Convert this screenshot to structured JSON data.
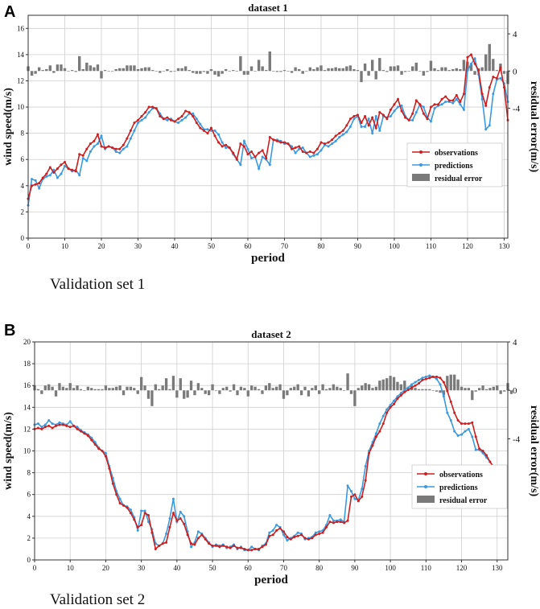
{
  "panels": [
    {
      "letter": "A",
      "caption": "Validation set 1"
    },
    {
      "letter": "B",
      "caption": "Validation set 2"
    }
  ],
  "chart_data": [
    {
      "type": "line",
      "title": "dataset 1",
      "xlabel": "period",
      "ylabel": "wind speed(m/s)",
      "ylabel_right": "residual error(m/s)",
      "xlim": [
        0,
        131
      ],
      "ylim": [
        0,
        17
      ],
      "y2lim": [
        -18,
        6
      ],
      "xticks": [
        0,
        10,
        20,
        30,
        40,
        50,
        60,
        70,
        80,
        90,
        100,
        110,
        120,
        130
      ],
      "yticks": [
        0,
        2,
        4,
        6,
        8,
        10,
        12,
        14,
        16
      ],
      "y2ticks": [
        4,
        0,
        -4
      ],
      "grid": true,
      "legend_position": "bottom-right",
      "legend": {
        "observations": "observations",
        "predictions": "predictions",
        "residual": "residual error"
      },
      "colors": {
        "observations": "#cc1f1f",
        "predictions": "#3a9ae0",
        "residual": "#7a7a7a"
      },
      "observations": [
        3.0,
        4.0,
        4.1,
        4.2,
        4.6,
        4.9,
        5.4,
        5.0,
        5.3,
        5.6,
        5.8,
        5.3,
        5.2,
        5.1,
        6.4,
        6.3,
        6.8,
        7.2,
        7.4,
        7.9,
        7.0,
        6.9,
        7.0,
        6.9,
        6.8,
        6.8,
        7.1,
        7.6,
        8.2,
        8.8,
        9.0,
        9.3,
        9.6,
        10.0,
        10.0,
        9.9,
        9.3,
        9.1,
        9.2,
        9.0,
        8.9,
        9.1,
        9.3,
        9.7,
        9.6,
        9.3,
        8.8,
        8.4,
        8.2,
        8.0,
        8.4,
        7.8,
        7.3,
        7.0,
        7.1,
        6.9,
        6.5,
        6.0,
        7.2,
        7.0,
        6.4,
        6.6,
        6.2,
        6.5,
        6.7,
        6.1,
        7.7,
        7.5,
        7.4,
        7.3,
        7.3,
        7.2,
        6.8,
        6.9,
        7.0,
        6.6,
        6.5,
        6.6,
        6.5,
        6.8,
        7.3,
        7.2,
        7.3,
        7.5,
        7.8,
        8.0,
        8.2,
        8.6,
        9.1,
        9.3,
        9.4,
        8.8,
        9.3,
        8.6,
        9.2,
        8.4,
        9.6,
        9.4,
        9.1,
        9.8,
        10.2,
        10.6,
        9.7,
        9.2,
        9.0,
        9.5,
        10.5,
        10.2,
        9.5,
        9.1,
        10.0,
        10.2,
        10.2,
        10.6,
        10.8,
        10.5,
        10.5,
        10.9,
        10.4,
        11.0,
        13.8,
        14.0,
        13.3,
        12.8,
        11.0,
        10.1,
        11.5,
        12.3,
        12.2,
        13.0,
        11.5,
        9.0
      ],
      "predictions": [
        2.5,
        4.5,
        4.4,
        3.8,
        4.5,
        4.7,
        4.8,
        5.2,
        4.6,
        4.9,
        5.5,
        5.3,
        5.1,
        5.2,
        4.8,
        6.1,
        5.9,
        6.6,
        7.0,
        7.2,
        7.8,
        6.8,
        7.0,
        6.9,
        6.6,
        6.5,
        6.8,
        7.0,
        7.6,
        8.2,
        8.8,
        9.0,
        9.2,
        9.6,
        9.9,
        9.9,
        9.5,
        9.1,
        9.0,
        9.1,
        8.9,
        8.8,
        9.0,
        9.2,
        9.5,
        9.5,
        9.1,
        8.7,
        8.3,
        8.3,
        8.2,
        8.2,
        7.9,
        7.3,
        6.9,
        6.9,
        6.4,
        6.0,
        5.6,
        7.4,
        6.8,
        6.1,
        6.2,
        5.3,
        6.2,
        6.0,
        5.6,
        7.5,
        7.5,
        7.4,
        7.2,
        7.2,
        7.0,
        6.5,
        6.8,
        6.9,
        6.5,
        6.2,
        6.3,
        6.4,
        6.7,
        7.1,
        7.0,
        7.2,
        7.4,
        7.7,
        7.9,
        8.1,
        8.5,
        9.1,
        9.3,
        8.5,
        8.5,
        9.1,
        8.0,
        9.3,
        8.2,
        9.3,
        9.2,
        9.3,
        9.7,
        10.0,
        10.1,
        9.3,
        9.0,
        9.0,
        9.6,
        10.2,
        10.0,
        9.2,
        8.9,
        9.9,
        10.1,
        10.2,
        10.4,
        10.4,
        10.3,
        10.6,
        10.2,
        9.8,
        12.8,
        13.3,
        13.7,
        12.5,
        10.6,
        8.3,
        8.6,
        11.0,
        12.1,
        12.2,
        11.8,
        10.4
      ],
      "residuals": [
        0.5,
        -0.5,
        -0.3,
        0.4,
        0.1,
        0.2,
        0.6,
        -0.2,
        0.7,
        0.7,
        0.3,
        0.0,
        0.1,
        -0.1,
        1.6,
        0.2,
        0.9,
        0.6,
        0.4,
        0.7,
        -0.8,
        0.1,
        0.0,
        0.0,
        0.2,
        0.3,
        0.3,
        0.6,
        0.6,
        0.6,
        0.2,
        0.3,
        0.4,
        0.4,
        0.1,
        0.0,
        -0.2,
        0.0,
        0.2,
        -0.1,
        0.0,
        0.3,
        0.3,
        0.5,
        0.1,
        -0.2,
        -0.3,
        -0.3,
        -0.1,
        -0.3,
        0.2,
        -0.4,
        -0.6,
        -0.3,
        0.2,
        0.0,
        0.1,
        0.0,
        1.6,
        -0.4,
        -0.4,
        0.5,
        0.0,
        1.2,
        0.5,
        0.1,
        2.1,
        0.0,
        -0.1,
        -0.1,
        0.1,
        0.0,
        -0.2,
        0.4,
        0.2,
        -0.3,
        0.0,
        0.4,
        0.2,
        0.4,
        0.6,
        0.1,
        0.3,
        0.3,
        0.4,
        0.3,
        0.3,
        0.5,
        0.6,
        0.2,
        0.1,
        -1.2,
        0.8,
        -0.5,
        1.2,
        -0.9,
        1.4,
        0.1,
        -0.1,
        0.5,
        0.5,
        0.6,
        -0.4,
        -0.1,
        0.0,
        0.5,
        0.9,
        0.0,
        -0.5,
        -0.1,
        1.1,
        0.3,
        0.1,
        0.4,
        0.4,
        0.1,
        0.2,
        0.3,
        0.2,
        1.2,
        1.0,
        0.7,
        -0.4,
        0.3,
        0.4,
        1.8,
        2.9,
        1.3,
        0.1,
        0.8,
        -0.3,
        -1.4
      ]
    },
    {
      "type": "line",
      "title": "dataset 2",
      "xlabel": "period",
      "ylabel": "wind speed(m/s)",
      "ylabel_right": "residual error(m/s)",
      "xlim": [
        0,
        133
      ],
      "ylim": [
        0,
        20
      ],
      "y2lim": [
        -14,
        4
      ],
      "xticks": [
        0,
        10,
        20,
        30,
        40,
        50,
        60,
        70,
        80,
        90,
        100,
        110,
        120,
        130
      ],
      "yticks": [
        0,
        2,
        4,
        6,
        8,
        10,
        12,
        14,
        16,
        18,
        20
      ],
      "y2ticks": [
        4,
        0,
        -4
      ],
      "grid": true,
      "legend_position": "bottom-right",
      "legend": {
        "observations": "observations",
        "predictions": "predictions",
        "residual": "residual error"
      },
      "colors": {
        "observations": "#cc1f1f",
        "predictions": "#3a9ae0",
        "residual": "#7a7a7a"
      },
      "observations": [
        12.0,
        12.1,
        12.0,
        12.2,
        12.3,
        12.1,
        12.3,
        12.4,
        12.4,
        12.3,
        12.2,
        12.3,
        12.0,
        11.8,
        11.6,
        11.4,
        11.0,
        10.6,
        10.2,
        10.0,
        9.5,
        8.4,
        7.0,
        6.0,
        5.2,
        5.0,
        4.8,
        4.3,
        3.7,
        3.0,
        3.2,
        4.3,
        4.1,
        2.5,
        1.0,
        1.3,
        1.5,
        1.6,
        3.0,
        4.3,
        3.6,
        3.8,
        3.3,
        2.3,
        1.5,
        1.4,
        2.0,
        2.3,
        1.9,
        1.5,
        1.3,
        1.3,
        1.2,
        1.3,
        1.2,
        1.1,
        1.3,
        1.1,
        1.1,
        1.0,
        0.9,
        0.9,
        1.0,
        1.0,
        1.2,
        1.4,
        2.2,
        2.3,
        2.7,
        2.9,
        2.6,
        2.1,
        1.9,
        2.1,
        2.2,
        2.3,
        2.0,
        1.9,
        2.0,
        2.3,
        2.4,
        2.5,
        3.0,
        3.5,
        3.4,
        3.5,
        3.5,
        3.4,
        3.6,
        5.8,
        6.0,
        5.4,
        5.8,
        7.3,
        9.8,
        10.5,
        11.3,
        11.8,
        12.5,
        13.5,
        14.0,
        14.3,
        14.8,
        15.1,
        15.4,
        15.6,
        15.8,
        16.0,
        16.2,
        16.5,
        16.6,
        16.7,
        16.8,
        16.8,
        16.7,
        16.3,
        15.5,
        14.5,
        13.5,
        12.8,
        12.5,
        12.5,
        12.5,
        12.6,
        11.3,
        10.2,
        10.0,
        9.6,
        9.0,
        8.5,
        8.3,
        8.0,
        7.8
      ],
      "predictions": [
        12.4,
        12.5,
        12.2,
        12.4,
        12.8,
        12.5,
        12.4,
        12.6,
        12.5,
        12.4,
        12.7,
        12.3,
        12.2,
        11.9,
        11.7,
        11.5,
        11.2,
        10.8,
        10.3,
        10.0,
        9.8,
        8.6,
        7.5,
        6.3,
        5.6,
        5.0,
        4.9,
        4.6,
        3.9,
        2.7,
        4.5,
        4.5,
        3.5,
        2.8,
        1.5,
        1.3,
        1.5,
        2.4,
        3.8,
        5.6,
        3.5,
        4.4,
        4.0,
        2.6,
        1.2,
        1.6,
        2.6,
        2.4,
        2.0,
        1.6,
        1.2,
        1.4,
        1.3,
        1.4,
        1.1,
        1.2,
        1.4,
        1.0,
        1.2,
        0.9,
        0.9,
        1.2,
        1.0,
        0.9,
        1.3,
        1.5,
        2.5,
        2.7,
        3.2,
        3.0,
        2.3,
        1.8,
        2.0,
        2.2,
        2.5,
        2.4,
        1.9,
        2.0,
        2.1,
        2.5,
        2.6,
        2.7,
        3.2,
        4.1,
        3.6,
        3.6,
        3.7,
        3.5,
        6.8,
        6.3,
        5.6,
        5.5,
        6.5,
        8.6,
        10.0,
        10.8,
        11.6,
        12.5,
        13.2,
        13.8,
        14.2,
        14.6,
        15.0,
        15.3,
        15.6,
        15.8,
        16.1,
        16.3,
        16.5,
        16.7,
        16.8,
        16.9,
        16.8,
        16.6,
        16.1,
        15.0,
        13.5,
        12.8,
        11.8,
        11.4,
        11.5,
        11.8,
        12.0,
        11.3,
        10.1,
        10.1,
        9.8,
        9.4,
        9.0,
        8.6,
        8.0,
        8.0,
        7.6
      ],
      "residuals": [
        0.4,
        0.1,
        -0.3,
        0.4,
        0.5,
        0.3,
        -0.5,
        0.6,
        0.3,
        0.2,
        0.6,
        0.2,
        0.4,
        0.1,
        0.0,
        0.3,
        0.2,
        0.1,
        0.1,
        0.1,
        0.4,
        0.2,
        0.2,
        0.3,
        0.4,
        -0.4,
        0.3,
        0.3,
        0.2,
        -0.3,
        1.1,
        0.4,
        -0.7,
        -1.3,
        0.5,
        0.1,
        0.4,
        1.0,
        0.1,
        1.2,
        -0.6,
        1.0,
        -0.7,
        -0.6,
        0.8,
        -0.4,
        0.6,
        0.2,
        -0.3,
        -0.4,
        0.5,
        0.0,
        -0.3,
        0.2,
        0.3,
        -0.1,
        0.5,
        -0.4,
        0.3,
        0.2,
        -0.5,
        0.4,
        0.3,
        0.1,
        -0.3,
        0.4,
        0.6,
        0.2,
        0.3,
        0.5,
        -0.7,
        -0.4,
        0.2,
        0.3,
        0.5,
        -0.4,
        0.3,
        -0.5,
        0.2,
        0.4,
        -0.3,
        0.5,
        0.1,
        0.2,
        0.5,
        0.3,
        0.2,
        0.0,
        1.4,
        -0.3,
        -1.3,
        0.2,
        0.4,
        0.6,
        0.5,
        0.2,
        0.3,
        0.8,
        0.9,
        1.0,
        1.2,
        1.1,
        0.7,
        0.5,
        0.8,
        0.3,
        0.4,
        0.2,
        0.1,
        0.1,
        0.1,
        0.1,
        0.0,
        -0.1,
        -0.2,
        -0.4,
        1.2,
        1.3,
        1.3,
        0.9,
        0.3,
        0.2,
        0.2,
        -0.8,
        -0.1,
        0.2,
        0.4,
        0.1,
        0.2,
        0.3,
        0.4,
        -0.3,
        -0.1,
        0.6,
        -0.3
      ]
    }
  ]
}
